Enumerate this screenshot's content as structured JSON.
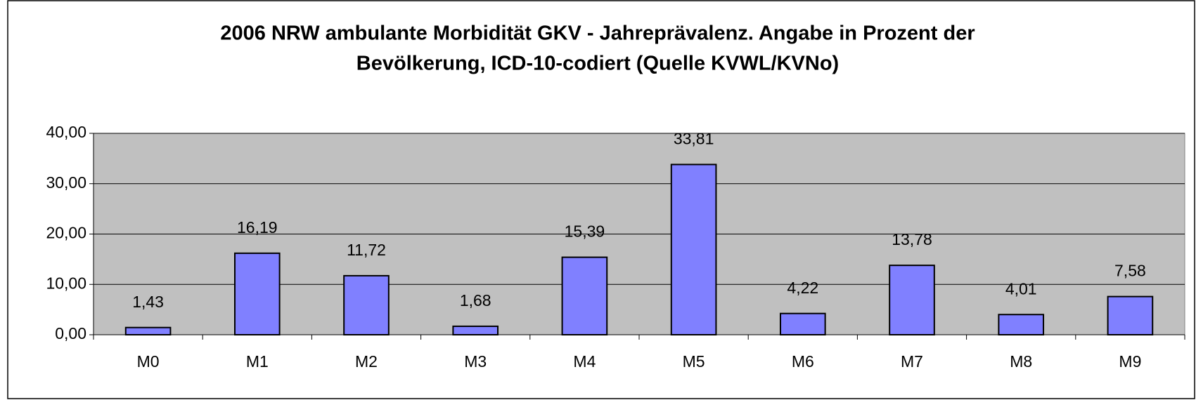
{
  "chart_data": {
    "type": "bar",
    "title": [
      "2006 NRW ambulante Morbidität GKV - Jahreprävalenz. Angabe in Prozent der",
      "Bevölkerung, ICD-10-codiert (Quelle KVWL/KVNo)"
    ],
    "categories": [
      "M0",
      "M1",
      "M2",
      "M3",
      "M4",
      "M5",
      "M6",
      "M7",
      "M8",
      "M9"
    ],
    "values": [
      1.43,
      16.19,
      11.72,
      1.68,
      15.39,
      33.81,
      4.22,
      13.78,
      4.01,
      7.58
    ],
    "value_labels": [
      "1,43",
      "16,19",
      "11,72",
      "1,68",
      "15,39",
      "33,81",
      "4,22",
      "13,78",
      "4,01",
      "7,58"
    ],
    "color": "#8080ff",
    "ylim": [
      0,
      40
    ],
    "yticks": [
      {
        "value": 0,
        "label": "0,00"
      },
      {
        "value": 10,
        "label": "10,00"
      },
      {
        "value": 20,
        "label": "20,00"
      },
      {
        "value": 30,
        "label": "30,00"
      },
      {
        "value": 40,
        "label": "40,00"
      }
    ],
    "grid": true
  }
}
